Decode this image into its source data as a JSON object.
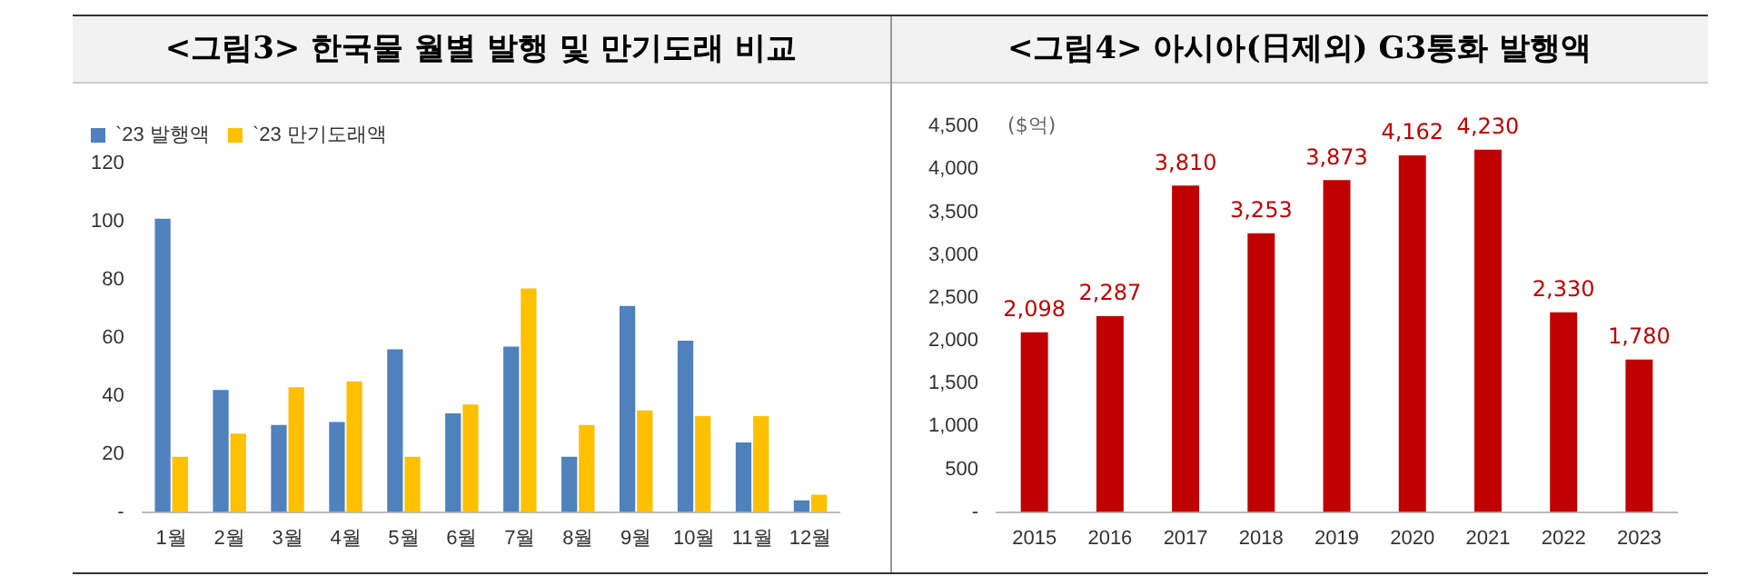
{
  "chart_data": [
    {
      "type": "bar",
      "title": "<그림3> 한국물 월별 발행 및 만기도래 비교",
      "categories": [
        "1월",
        "2월",
        "3월",
        "4월",
        "5월",
        "6월",
        "7월",
        "8월",
        "9월",
        "10월",
        "11월",
        "12월"
      ],
      "series": [
        {
          "name": "`23 발행액",
          "color": "#4f81bd",
          "values": [
            101,
            42,
            30,
            31,
            56,
            34,
            57,
            19,
            71,
            59,
            24,
            4
          ]
        },
        {
          "name": "`23 만기도래액",
          "color": "#ffc000",
          "values": [
            19,
            27,
            43,
            45,
            19,
            37,
            77,
            30,
            35,
            33,
            33,
            6
          ]
        }
      ],
      "ylim": [
        0,
        120
      ],
      "yticks": [
        {
          "value": 0,
          "label": "-"
        },
        20,
        40,
        60,
        80,
        100,
        120
      ],
      "grid": false,
      "legend": "top left"
    },
    {
      "type": "bar",
      "title": "<그림4> 아시아(日제외) G3통화 발행액",
      "ylabel": "($억)",
      "categories": [
        "2015",
        "2016",
        "2017",
        "2018",
        "2019",
        "2020",
        "2021",
        "2022",
        "2023"
      ],
      "series": [
        {
          "color": "#c00000",
          "values": [
            2098,
            2287,
            3810,
            3253,
            3873,
            4162,
            4230,
            2330,
            1780
          ],
          "value_labels": [
            "2,098",
            "2,287",
            "3,810",
            "3,253",
            "3,873",
            "4,162",
            "4,230",
            "2,330",
            "1,780"
          ]
        }
      ],
      "ylim": [
        0,
        4500
      ],
      "yticks": [
        {
          "value": 0,
          "label": "-"
        },
        {
          "value": 500,
          "label": "500"
        },
        {
          "value": 1000,
          "label": "1,000"
        },
        {
          "value": 1500,
          "label": "1,500"
        },
        {
          "value": 2000,
          "label": "2,000"
        },
        {
          "value": 2500,
          "label": "2,500"
        },
        {
          "value": 3000,
          "label": "3,000"
        },
        {
          "value": 3500,
          "label": "3,500"
        },
        {
          "value": 4000,
          "label": "4,000"
        },
        {
          "value": 4500,
          "label": "4,500"
        }
      ],
      "grid": false
    }
  ]
}
